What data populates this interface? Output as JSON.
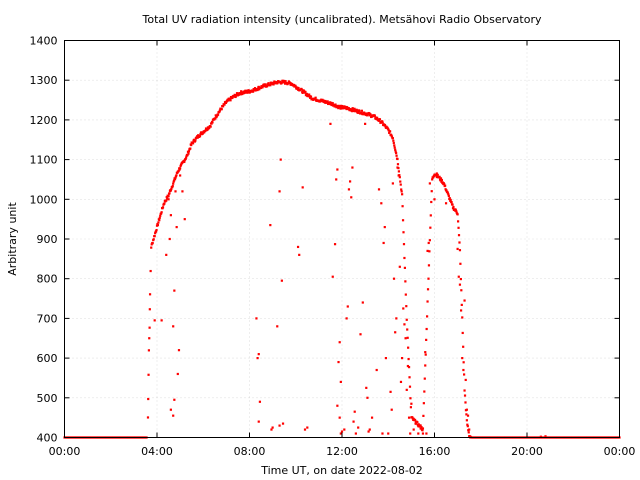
{
  "chart_data": {
    "type": "scatter",
    "title": "Total UV radiation intensity (uncalibrated). Metsähovi Radio Observatory",
    "xlabel": "Time UT, on date 2022-08-02",
    "ylabel": "Arbitrary unit",
    "xlim": [
      0,
      24
    ],
    "ylim": [
      400,
      1400
    ],
    "x_ticks": [
      {
        "value": 0,
        "label": "00:00"
      },
      {
        "value": 4,
        "label": "04:00"
      },
      {
        "value": 8,
        "label": "08:00"
      },
      {
        "value": 12,
        "label": "12:00"
      },
      {
        "value": 16,
        "label": "16:00"
      },
      {
        "value": 20,
        "label": "20:00"
      },
      {
        "value": 24,
        "label": "00:00"
      }
    ],
    "y_ticks": [
      400,
      500,
      600,
      700,
      800,
      900,
      1000,
      1100,
      1200,
      1300,
      1400
    ],
    "grid": true,
    "point_color": "#ff0000",
    "series": [
      {
        "name": "",
        "envelope": [
          [
            0.0,
            400
          ],
          [
            3.6,
            400
          ],
          [
            3.62,
            500
          ],
          [
            3.65,
            620
          ],
          [
            3.68,
            680
          ],
          [
            3.7,
            760
          ],
          [
            3.75,
            880
          ],
          [
            3.9,
            910
          ],
          [
            4.1,
            950
          ],
          [
            4.3,
            990
          ],
          [
            4.5,
            1010
          ],
          [
            4.7,
            1040
          ],
          [
            4.9,
            1070
          ],
          [
            5.1,
            1090
          ],
          [
            5.3,
            1110
          ],
          [
            5.5,
            1140
          ],
          [
            5.8,
            1160
          ],
          [
            6.0,
            1170
          ],
          [
            6.3,
            1185
          ],
          [
            6.5,
            1205
          ],
          [
            6.8,
            1230
          ],
          [
            7.0,
            1245
          ],
          [
            7.3,
            1258
          ],
          [
            7.6,
            1268
          ],
          [
            8.0,
            1272
          ],
          [
            8.3,
            1278
          ],
          [
            8.6,
            1285
          ],
          [
            8.9,
            1290
          ],
          [
            9.2,
            1295
          ],
          [
            9.5,
            1295
          ],
          [
            9.8,
            1292
          ],
          [
            10.1,
            1280
          ],
          [
            10.4,
            1268
          ],
          [
            10.7,
            1255
          ],
          [
            11.0,
            1250
          ],
          [
            11.3,
            1245
          ],
          [
            11.6,
            1240
          ],
          [
            11.9,
            1232
          ],
          [
            12.2,
            1230
          ],
          [
            12.5,
            1225
          ],
          [
            12.8,
            1220
          ],
          [
            13.1,
            1215
          ],
          [
            13.4,
            1208
          ],
          [
            13.7,
            1195
          ],
          [
            14.0,
            1175
          ],
          [
            14.2,
            1155
          ],
          [
            14.4,
            1100
          ],
          [
            14.6,
            1010
          ],
          [
            14.8,
            700
          ],
          [
            15.0,
            450
          ],
          [
            15.5,
            420
          ],
          [
            15.8,
            900
          ],
          [
            15.9,
            1050
          ],
          [
            16.0,
            1065
          ],
          [
            16.2,
            1055
          ],
          [
            16.4,
            1040
          ],
          [
            16.6,
            1010
          ],
          [
            16.8,
            980
          ],
          [
            17.0,
            965
          ],
          [
            17.1,
            870
          ],
          [
            17.2,
            700
          ],
          [
            17.3,
            520
          ],
          [
            17.4,
            440
          ],
          [
            17.5,
            405
          ],
          [
            17.6,
            400
          ],
          [
            24.0,
            400
          ]
        ],
        "scatter": [
          [
            3.9,
            695
          ],
          [
            4.2,
            695
          ],
          [
            4.4,
            860
          ],
          [
            4.5,
            1000
          ],
          [
            4.55,
            900
          ],
          [
            4.6,
            960
          ],
          [
            4.7,
            680
          ],
          [
            4.75,
            770
          ],
          [
            4.8,
            1020
          ],
          [
            4.85,
            930
          ],
          [
            4.9,
            560
          ],
          [
            4.95,
            620
          ],
          [
            4.6,
            470
          ],
          [
            4.7,
            455
          ],
          [
            4.75,
            495
          ],
          [
            5.0,
            1060
          ],
          [
            5.2,
            950
          ],
          [
            5.1,
            1020
          ],
          [
            8.3,
            700
          ],
          [
            8.35,
            600
          ],
          [
            8.4,
            610
          ],
          [
            8.4,
            440
          ],
          [
            8.45,
            490
          ],
          [
            8.9,
            935
          ],
          [
            8.95,
            420
          ],
          [
            9.0,
            425
          ],
          [
            9.2,
            680
          ],
          [
            9.3,
            1020
          ],
          [
            9.35,
            1100
          ],
          [
            9.4,
            795
          ],
          [
            9.45,
            435
          ],
          [
            9.3,
            430
          ],
          [
            10.1,
            880
          ],
          [
            10.15,
            860
          ],
          [
            10.3,
            1030
          ],
          [
            10.4,
            420
          ],
          [
            10.5,
            425
          ],
          [
            11.5,
            1190
          ],
          [
            11.6,
            805
          ],
          [
            11.7,
            887
          ],
          [
            11.75,
            1050
          ],
          [
            11.8,
            1075
          ],
          [
            11.85,
            590
          ],
          [
            11.9,
            640
          ],
          [
            11.95,
            540
          ],
          [
            11.8,
            480
          ],
          [
            11.9,
            450
          ],
          [
            11.95,
            410
          ],
          [
            12.0,
            415
          ],
          [
            12.1,
            420
          ],
          [
            12.2,
            700
          ],
          [
            12.25,
            730
          ],
          [
            12.3,
            1025
          ],
          [
            12.35,
            1045
          ],
          [
            12.4,
            1005
          ],
          [
            12.45,
            1080
          ],
          [
            12.5,
            440
          ],
          [
            12.55,
            465
          ],
          [
            12.6,
            410
          ],
          [
            12.7,
            425
          ],
          [
            12.8,
            660
          ],
          [
            12.9,
            740
          ],
          [
            13.0,
            1190
          ],
          [
            13.05,
            525
          ],
          [
            13.1,
            500
          ],
          [
            13.15,
            415
          ],
          [
            13.2,
            420
          ],
          [
            13.3,
            450
          ],
          [
            13.5,
            570
          ],
          [
            13.6,
            1025
          ],
          [
            13.7,
            990
          ],
          [
            13.75,
            410
          ],
          [
            13.8,
            890
          ],
          [
            13.85,
            930
          ],
          [
            13.9,
            600
          ],
          [
            14.0,
            410
          ],
          [
            14.1,
            515
          ],
          [
            14.15,
            470
          ],
          [
            14.2,
            1040
          ],
          [
            14.25,
            800
          ],
          [
            14.3,
            665
          ],
          [
            14.35,
            700
          ],
          [
            14.4,
            1080
          ],
          [
            14.45,
            1060
          ],
          [
            14.5,
            830
          ],
          [
            14.55,
            540
          ],
          [
            14.6,
            600
          ],
          [
            14.65,
            725
          ],
          [
            14.7,
            685
          ],
          [
            14.75,
            650
          ],
          [
            14.8,
            520
          ],
          [
            14.85,
            580
          ],
          [
            14.9,
            450
          ],
          [
            14.95,
            410
          ],
          [
            15.0,
            485
          ],
          [
            15.1,
            420
          ],
          [
            15.2,
            440
          ],
          [
            15.3,
            410
          ],
          [
            15.4,
            430
          ],
          [
            15.5,
            410
          ],
          [
            15.6,
            615
          ],
          [
            15.65,
            410
          ],
          [
            15.7,
            870
          ],
          [
            15.75,
            890
          ],
          [
            15.8,
            1040
          ],
          [
            16.0,
            1000
          ],
          [
            16.1,
            1065
          ],
          [
            16.5,
            990
          ],
          [
            17.0,
            875
          ],
          [
            17.05,
            805
          ],
          [
            17.1,
            785
          ],
          [
            17.15,
            720
          ],
          [
            17.2,
            600
          ],
          [
            17.25,
            570
          ],
          [
            17.3,
            745
          ],
          [
            17.35,
            545
          ],
          [
            17.4,
            470
          ],
          [
            17.45,
            455
          ],
          [
            17.5,
            420
          ],
          [
            20.6,
            402
          ],
          [
            20.8,
            403
          ]
        ]
      }
    ]
  }
}
